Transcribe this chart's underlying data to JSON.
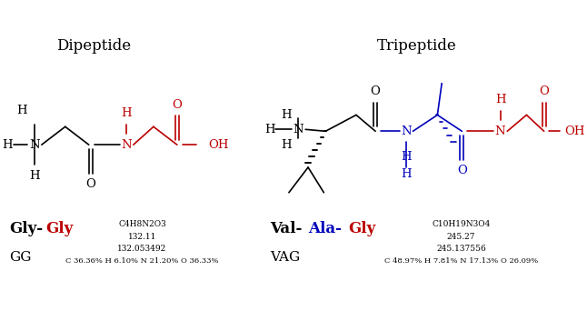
{
  "bg_color": "#ffffff",
  "title_dipeptide": "Dipeptide",
  "title_tripeptide": "Tripeptide",
  "title_fontsize": 12,
  "formula_dipeptide": "C4H8N2O3",
  "mw_dipeptide": "132.11",
  "mw_exact_dipeptide": "132.053492",
  "comp_dipeptide": "C 36.36% H 6.10% N 21.20% O 36.33%",
  "formula_tripeptide": "C10H19N3O4",
  "mw_tripeptide": "245.27",
  "mw_exact_tripeptide": "245.137556",
  "comp_tripeptide": "C 48.97% H 7.81% N 17.13% O 26.09%",
  "black": "#000000",
  "red": "#bb0000",
  "blue": "#0000bb",
  "small_fontsize": 6.5,
  "label_fontsize": 12,
  "struct_fontsize": 9.5
}
